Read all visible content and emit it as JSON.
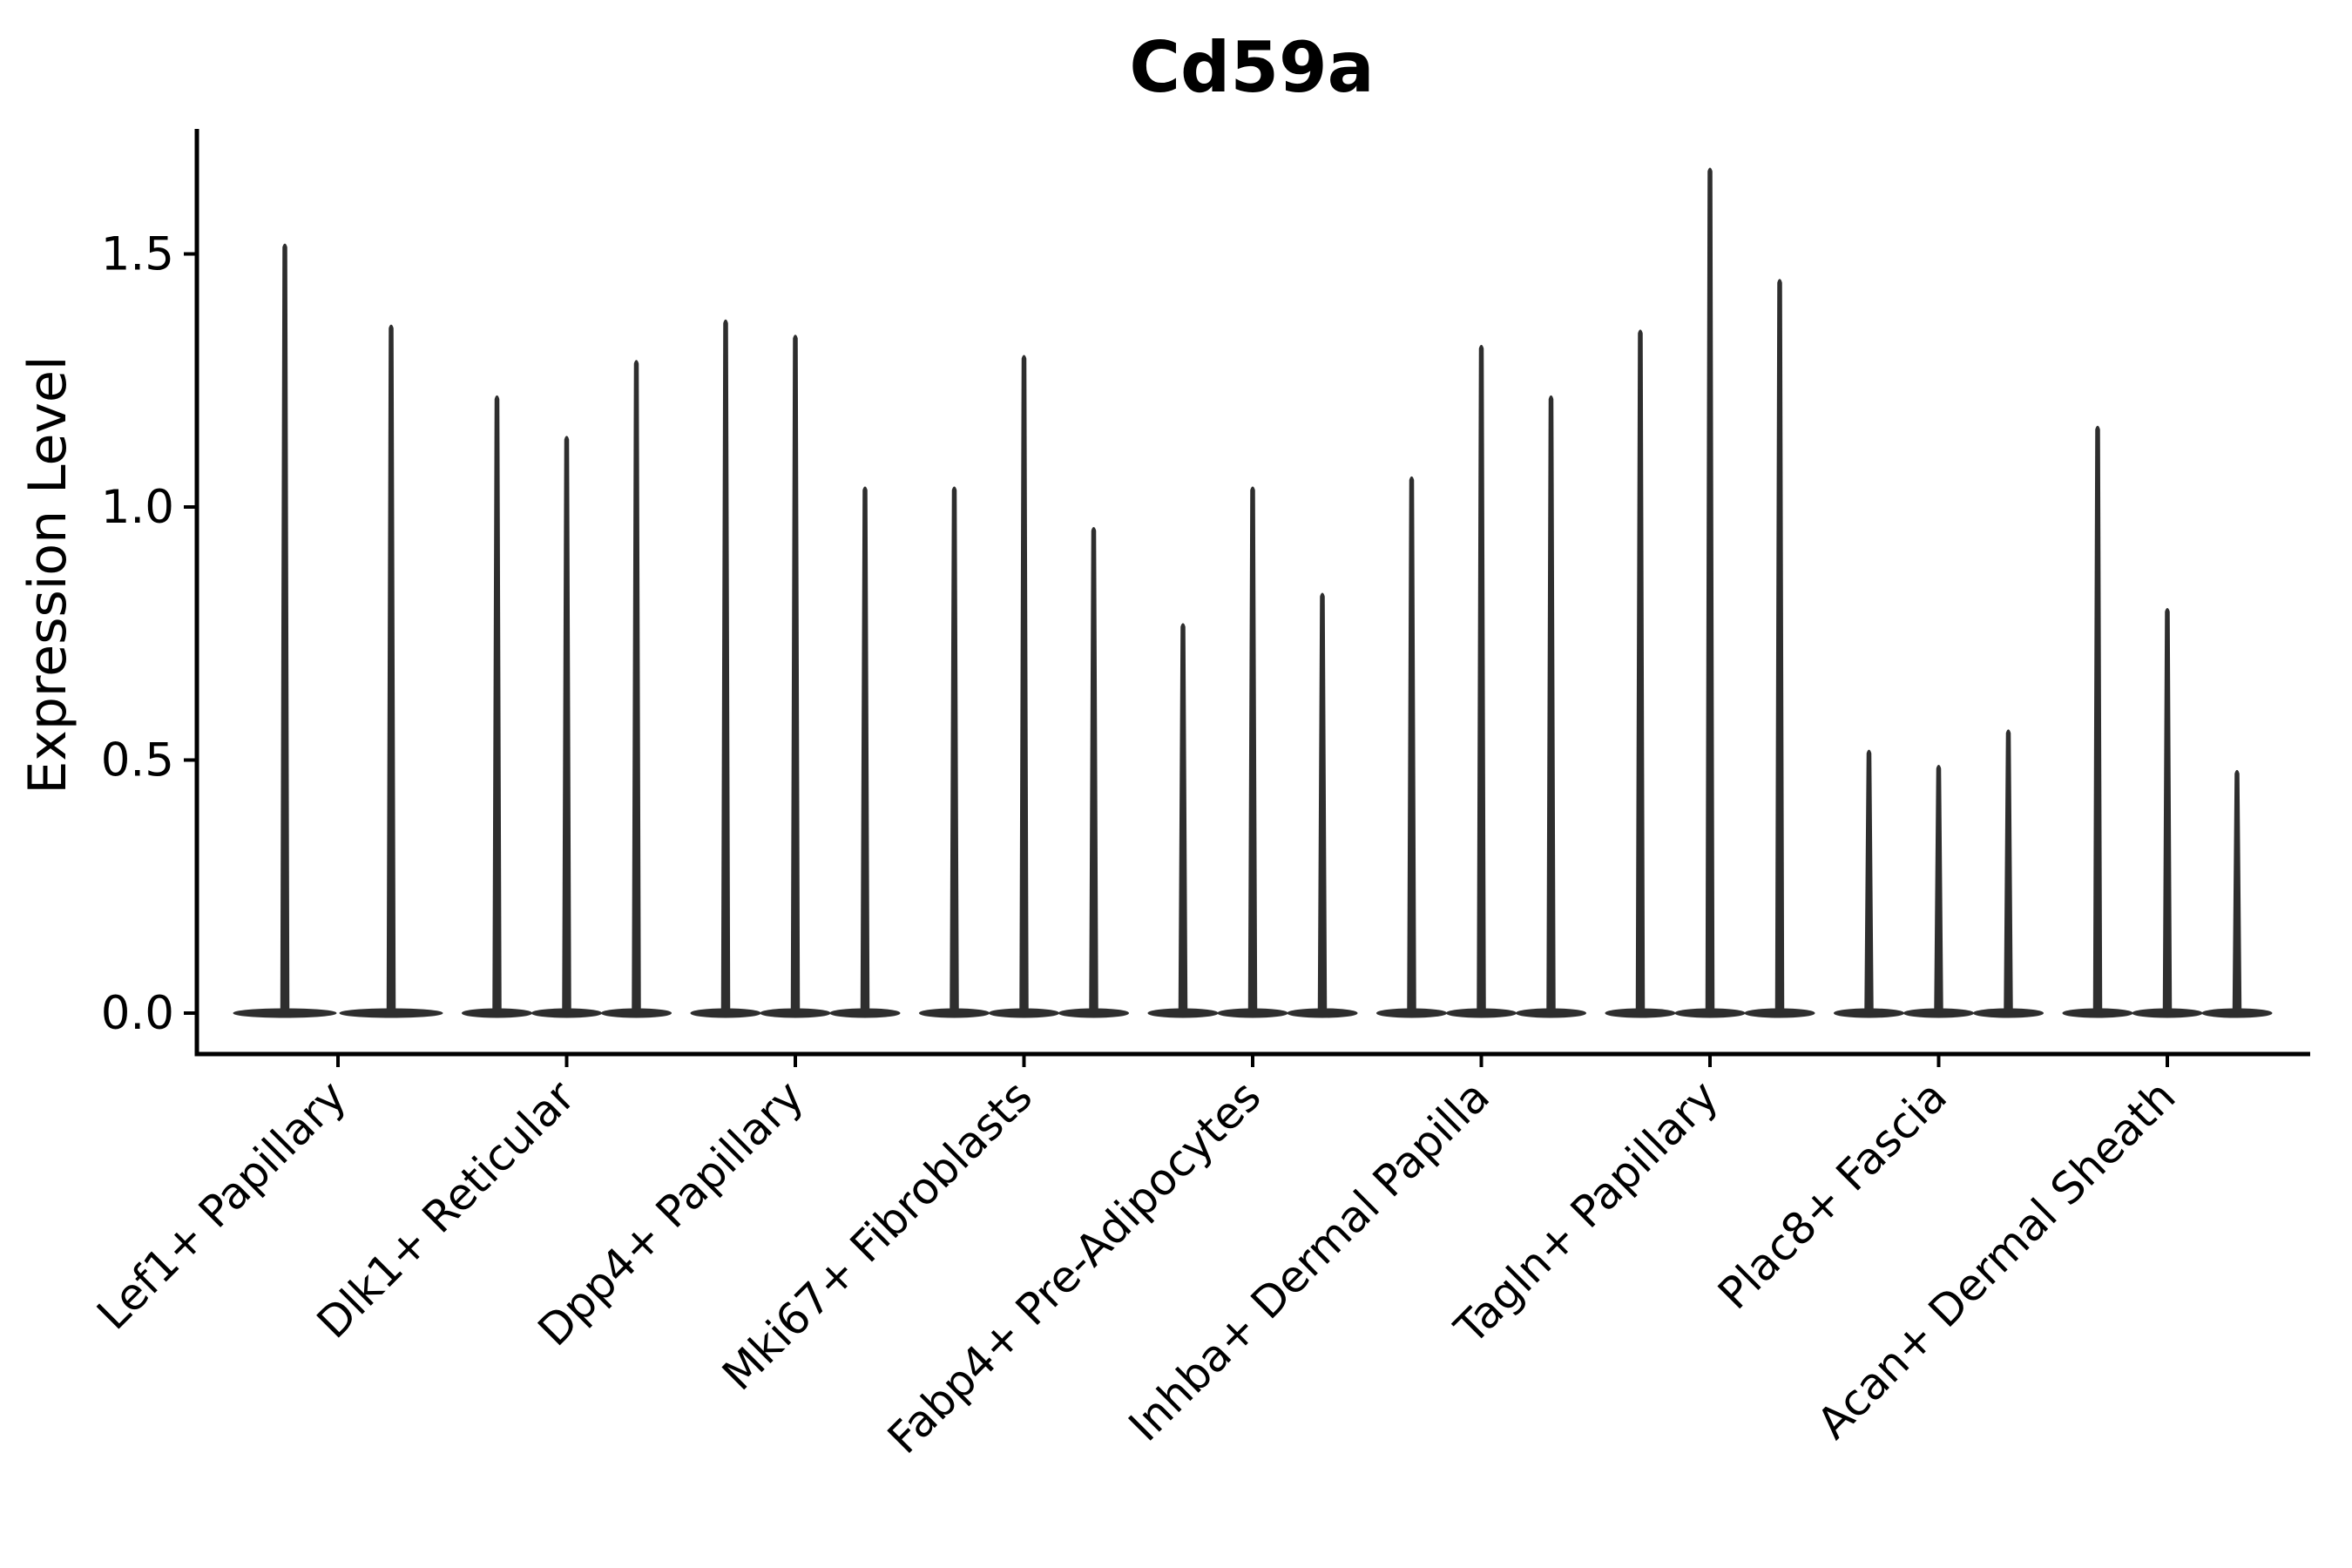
{
  "chart_data": {
    "type": "violin",
    "title": "Cd59a",
    "xlabel": "",
    "ylabel": "Expression Level",
    "ylim": [
      -0.08,
      1.75
    ],
    "grid": false,
    "legend": "none",
    "ytick_labels": [
      "0.0",
      "0.5",
      "1.0",
      "1.5"
    ],
    "yticks": [
      0.0,
      0.5,
      1.0,
      1.5
    ],
    "categories": [
      "Lef1+ Papillary",
      "Dlk1+ Reticular",
      "Dpp4+ Papillary",
      "Mki67+ Fibroblasts",
      "Fabp4+ Pre-Adipocytes",
      "Inhba+ Dermal Papilla",
      "Tagln+ Papillary",
      "Plac8+ Fascia",
      "Acan+ Dermal Sheath"
    ],
    "groups": [
      {
        "category": "Lef1+ Papillary",
        "violin_maxima": [
          1.52,
          1.36
        ],
        "violin_min": 0
      },
      {
        "category": "Dlk1+ Reticular",
        "violin_maxima": [
          1.22,
          1.14,
          1.29
        ],
        "violin_min": 0
      },
      {
        "category": "Dpp4+ Papillary",
        "violin_maxima": [
          1.37,
          1.34,
          1.04
        ],
        "violin_min": 0
      },
      {
        "category": "Mki67+ Fibroblasts",
        "violin_maxima": [
          1.04,
          1.3,
          0.96
        ],
        "violin_min": 0
      },
      {
        "category": "Fabp4+ Pre-Adipocytes",
        "violin_maxima": [
          0.77,
          1.04,
          0.83
        ],
        "violin_min": 0
      },
      {
        "category": "Inhba+ Dermal Papilla",
        "violin_maxima": [
          1.06,
          1.32,
          1.22
        ],
        "violin_min": 0
      },
      {
        "category": "Tagln+ Papillary",
        "violin_maxima": [
          1.35,
          1.67,
          1.45
        ],
        "violin_min": 0
      },
      {
        "category": "Plac8+ Fascia",
        "violin_maxima": [
          0.52,
          0.49,
          0.56
        ],
        "violin_min": 0
      },
      {
        "category": "Acan+ Dermal Sheath",
        "violin_maxima": [
          1.16,
          0.8,
          0.48
        ],
        "violin_min": 0
      }
    ],
    "colors": {
      "violin": "#2e2e2e",
      "axis": "#000000",
      "text": "#000000",
      "background": "#ffffff"
    }
  }
}
